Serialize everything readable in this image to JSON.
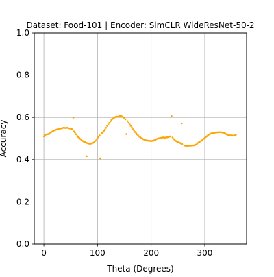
{
  "chart_data": {
    "type": "scatter",
    "title": "Dataset: Food-101 | Encoder: SimCLR WideResNet-50-2",
    "xlabel": "Theta (Degrees)",
    "ylabel": "Accuracy",
    "xlim": [
      -18,
      378
    ],
    "ylim": [
      0.0,
      1.0
    ],
    "xticks": [
      0,
      100,
      200,
      300
    ],
    "yticks": [
      0.0,
      0.2,
      0.4,
      0.6,
      0.8,
      1.0
    ],
    "xtick_labels": [
      "0",
      "100",
      "200",
      "300"
    ],
    "ytick_labels": [
      "0.0",
      "0.2",
      "0.4",
      "0.6",
      "0.8",
      "1.0"
    ],
    "grid": true,
    "marker_color": "#ffa500",
    "series": [
      {
        "x": [
          0,
          2,
          4,
          6,
          8,
          10,
          12,
          14,
          16,
          18,
          20,
          22,
          24,
          26,
          28,
          30,
          32,
          34,
          36,
          38,
          40,
          42,
          44,
          46,
          48,
          50,
          52,
          56,
          58,
          60,
          62,
          64,
          66,
          68,
          70,
          72,
          74,
          76,
          78,
          80,
          82,
          84,
          86,
          88,
          90,
          92,
          94,
          96,
          98,
          100,
          102,
          104,
          108,
          110,
          112,
          114,
          116,
          118,
          120,
          122,
          124,
          126,
          128,
          130,
          132,
          134,
          136,
          138,
          140,
          142,
          144,
          146,
          148,
          150,
          152,
          156,
          158,
          160,
          162,
          164,
          166,
          168,
          170,
          172,
          174,
          176,
          178,
          180,
          182,
          184,
          186,
          188,
          190,
          192,
          194,
          196,
          198,
          200,
          202,
          204,
          206,
          208,
          210,
          212,
          214,
          216,
          218,
          220,
          222,
          224,
          226,
          228,
          230,
          232,
          234,
          236,
          240,
          242,
          244,
          246,
          248,
          250,
          252,
          254,
          256,
          258,
          262,
          264,
          266,
          268,
          270,
          272,
          274,
          276,
          278,
          280,
          282,
          284,
          286,
          288,
          290,
          292,
          294,
          296,
          298,
          300,
          302,
          304,
          306,
          308,
          310,
          312,
          314,
          316,
          318,
          320,
          322,
          324,
          326,
          328,
          330,
          332,
          334,
          336,
          338,
          340,
          342,
          344,
          346,
          348,
          350,
          352,
          354,
          356,
          358,
          55,
          80,
          105,
          154,
          238,
          257
        ],
        "y": [
          0.51,
          0.516,
          0.519,
          0.52,
          0.521,
          0.522,
          0.528,
          0.531,
          0.534,
          0.537,
          0.539,
          0.541,
          0.543,
          0.544,
          0.546,
          0.547,
          0.548,
          0.549,
          0.551,
          0.551,
          0.55,
          0.551,
          0.551,
          0.549,
          0.548,
          0.547,
          0.545,
          0.534,
          0.528,
          0.52,
          0.512,
          0.507,
          0.503,
          0.498,
          0.493,
          0.489,
          0.486,
          0.484,
          0.482,
          0.479,
          0.477,
          0.476,
          0.475,
          0.476,
          0.478,
          0.48,
          0.483,
          0.489,
          0.496,
          0.503,
          0.508,
          0.515,
          0.525,
          0.53,
          0.537,
          0.543,
          0.551,
          0.56,
          0.566,
          0.574,
          0.581,
          0.588,
          0.593,
          0.597,
          0.6,
          0.603,
          0.604,
          0.603,
          0.606,
          0.607,
          0.607,
          0.604,
          0.601,
          0.596,
          0.591,
          0.582,
          0.574,
          0.567,
          0.56,
          0.552,
          0.544,
          0.538,
          0.531,
          0.525,
          0.519,
          0.514,
          0.509,
          0.505,
          0.502,
          0.499,
          0.496,
          0.494,
          0.492,
          0.491,
          0.49,
          0.49,
          0.489,
          0.488,
          0.489,
          0.49,
          0.492,
          0.494,
          0.497,
          0.499,
          0.501,
          0.502,
          0.503,
          0.504,
          0.505,
          0.505,
          0.504,
          0.505,
          0.506,
          0.507,
          0.509,
          0.51,
          0.505,
          0.498,
          0.493,
          0.489,
          0.486,
          0.483,
          0.481,
          0.479,
          0.476,
          0.473,
          0.467,
          0.466,
          0.465,
          0.465,
          0.466,
          0.466,
          0.466,
          0.467,
          0.467,
          0.468,
          0.469,
          0.472,
          0.476,
          0.481,
          0.484,
          0.487,
          0.49,
          0.494,
          0.499,
          0.503,
          0.507,
          0.511,
          0.515,
          0.519,
          0.522,
          0.524,
          0.525,
          0.525,
          0.527,
          0.528,
          0.529,
          0.529,
          0.53,
          0.53,
          0.53,
          0.529,
          0.528,
          0.527,
          0.524,
          0.521,
          0.518,
          0.516,
          0.515,
          0.515,
          0.515,
          0.514,
          0.514,
          0.515,
          0.518,
          0.599,
          0.416,
          0.406,
          0.521,
          0.606,
          0.571
        ]
      }
    ]
  }
}
